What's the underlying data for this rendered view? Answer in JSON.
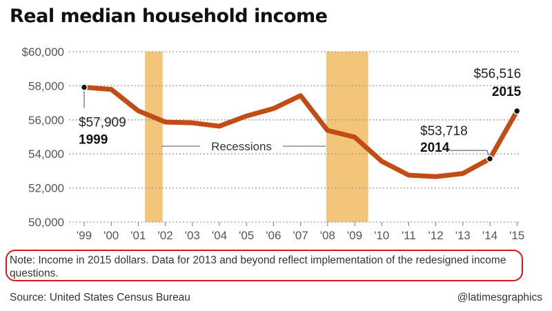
{
  "title": "Real median household income",
  "note": "Note: Income in 2015 dollars. Data for 2013 and beyond reflect implementation of the redesigned income questions.",
  "source": "Source: United States Census Bureau",
  "credit": "@latimesgraphics",
  "colors": {
    "line": "#c24d14",
    "recession": "#f3c57a",
    "grid": "#9a9a9a",
    "highlight_box": "#d9161a"
  },
  "chart_data": {
    "type": "line",
    "title": "Real median household income",
    "x": [
      1999,
      2000,
      2001,
      2002,
      2003,
      2004,
      2005,
      2006,
      2007,
      2008,
      2009,
      2010,
      2011,
      2012,
      2013,
      2014,
      2015
    ],
    "xtick_labels": [
      "'99",
      "'00",
      "'01",
      "'02",
      "'03",
      "'04",
      "'05",
      "'06",
      "'07",
      "'08",
      "'09",
      "'10",
      "'11",
      "'12",
      "'13",
      "'14",
      "'15"
    ],
    "y": [
      57909,
      57790,
      56531,
      55871,
      55823,
      55629,
      56224,
      56663,
      57423,
      55376,
      54988,
      53568,
      52751,
      52666,
      52850,
      53718,
      56516
    ],
    "ylim": [
      50000,
      60000
    ],
    "ytick_labels": [
      "50,000",
      "52,000",
      "54,000",
      "56,000",
      "58,000",
      "$60,000"
    ],
    "yticks": [
      50000,
      52000,
      54000,
      56000,
      58000,
      60000
    ],
    "grid": "horizontal dotted",
    "recessions": [
      [
        2001.25,
        2001.9
      ],
      [
        2007.95,
        2009.5
      ]
    ],
    "recession_label": "Recessions",
    "annotations": [
      {
        "value": "$57,909",
        "year": "1999",
        "x": 1999
      },
      {
        "value": "$53,718",
        "year": "2014",
        "x": 2014
      },
      {
        "value": "$56,516",
        "year": "2015",
        "x": 2015
      }
    ]
  }
}
